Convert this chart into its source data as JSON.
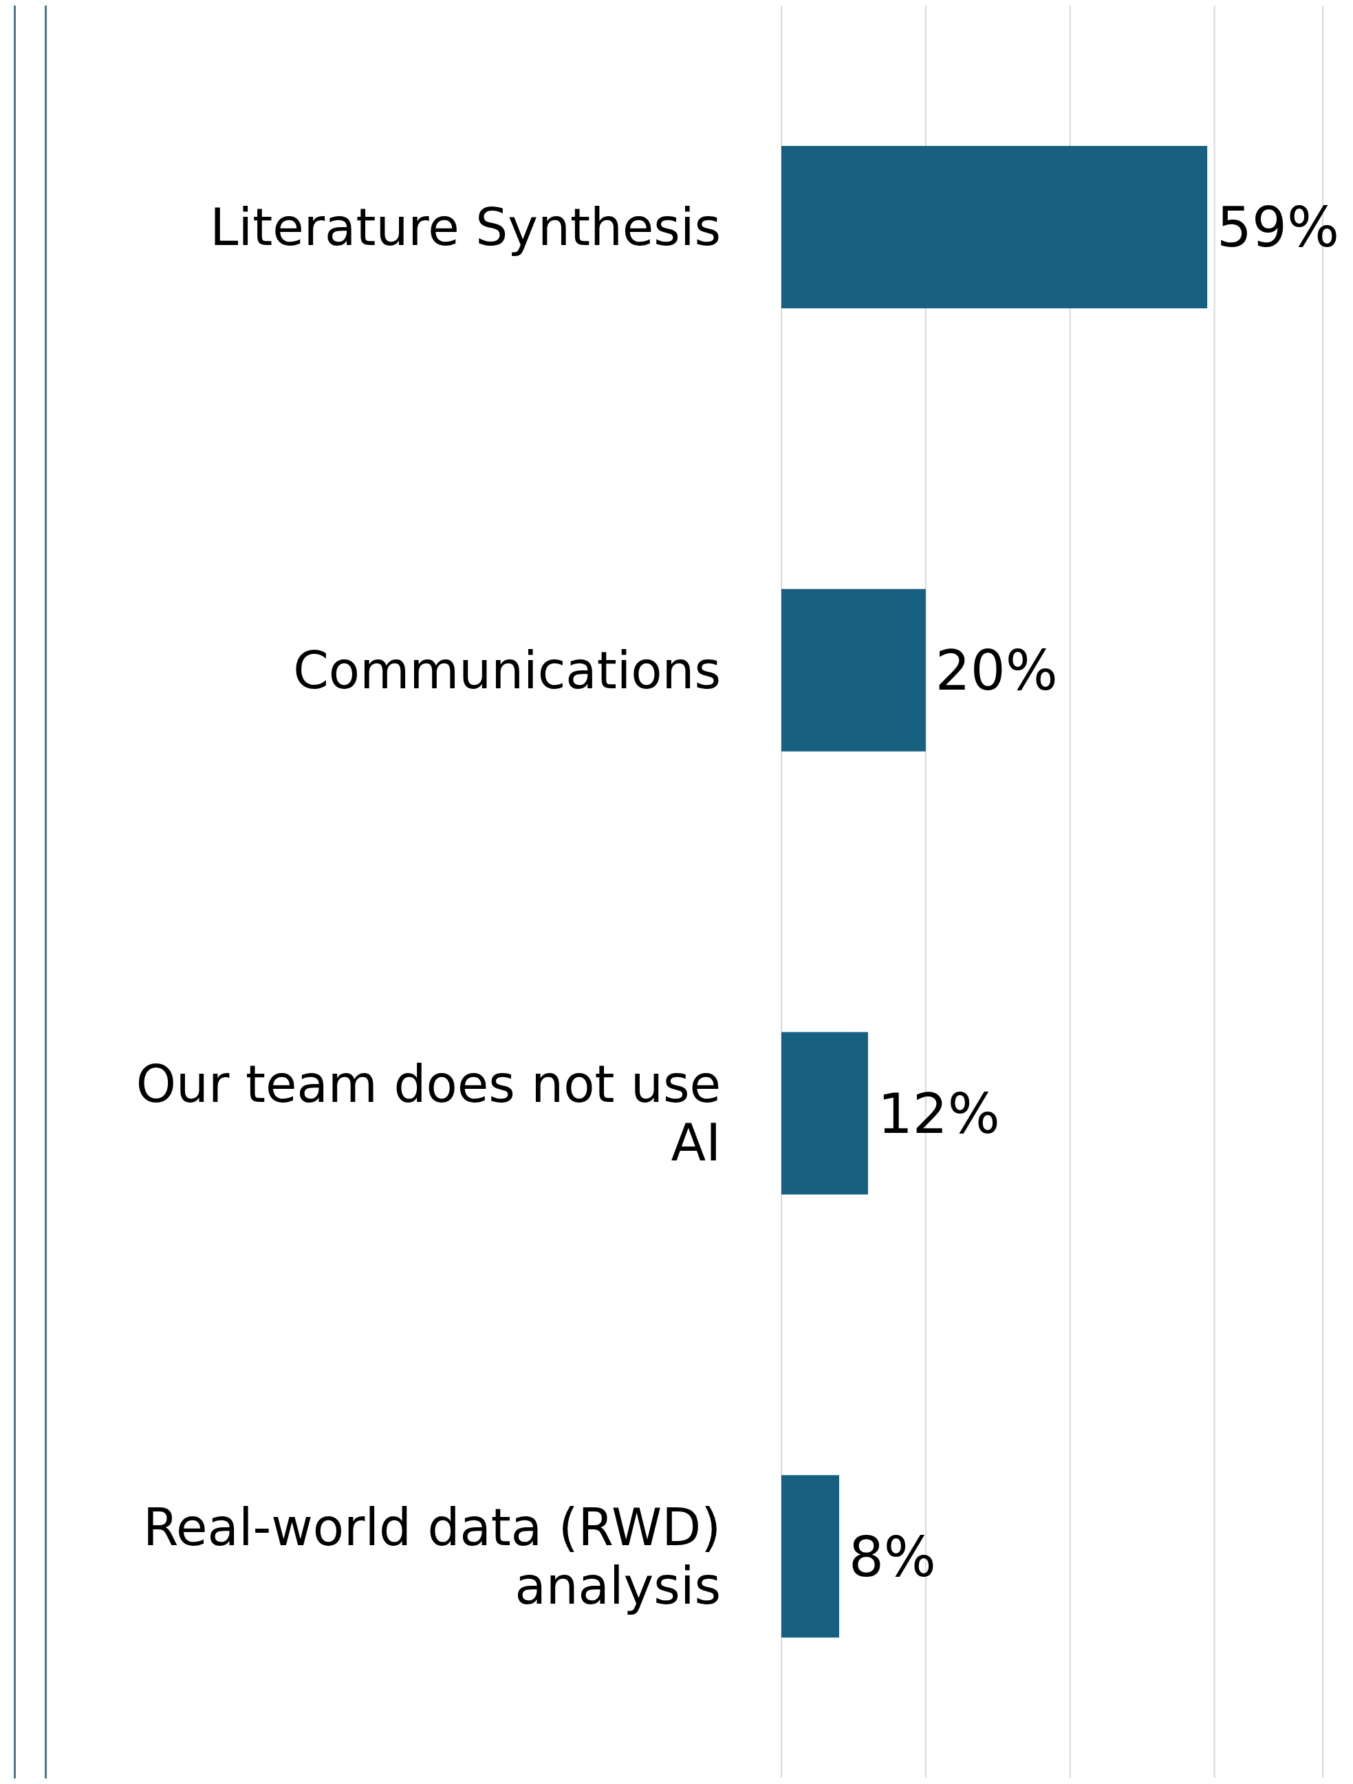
{
  "chart_data": {
    "type": "bar",
    "orientation": "horizontal",
    "categories": [
      "Literature Synthesis",
      "Communications",
      "Our team does not use AI",
      "Real-world data (RWD) analysis"
    ],
    "values": [
      59,
      20,
      12,
      8
    ],
    "value_labels": [
      "59%",
      "20%",
      "12%",
      "8%"
    ],
    "color": "#17607f",
    "xlim": [
      0,
      75
    ],
    "xticks": [
      {
        "value": 0,
        "label": null
      },
      {
        "value": 20,
        "label": null
      },
      {
        "value": 40,
        "label": null
      },
      {
        "value": 60,
        "label": null
      }
    ],
    "grid": "x",
    "tick_labels": "y"
  }
}
